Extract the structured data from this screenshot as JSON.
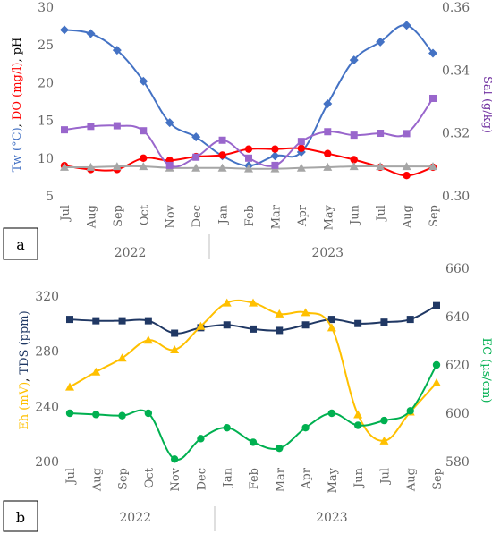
{
  "chart_data": [
    {
      "type": "line",
      "panel_label": "a",
      "categories": [
        "Jul",
        "Aug",
        "Sep",
        "Oct",
        "Nov",
        "Dec",
        "Jan",
        "Feb",
        "Mar",
        "Apr",
        "May",
        "Jun",
        "Jul",
        "Aug",
        "Sep"
      ],
      "years": [
        {
          "label": "2022",
          "from": 0,
          "to": 5
        },
        {
          "label": "2023",
          "from": 6,
          "to": 14
        }
      ],
      "left_axis": {
        "ylim": [
          5,
          30
        ],
        "ticks": [
          5,
          10,
          15,
          20,
          25,
          30
        ],
        "title_parts": [
          {
            "text": "Tw (°C)",
            "color": "#4472c4"
          },
          {
            "text": ", ",
            "color": "#000000"
          },
          {
            "text": "DO (mg/l)",
            "color": "#ff0000"
          },
          {
            "text": ", pH",
            "color": "#000000"
          }
        ]
      },
      "right_axis": {
        "ylim": [
          0.3,
          0.36
        ],
        "ticks": [
          "0.30",
          "0.32",
          "0.34",
          "0.36"
        ],
        "title_parts": [
          {
            "text": "Sal (g/kg)",
            "color": "#7030a0"
          }
        ]
      },
      "series": [
        {
          "key": "tw",
          "axis": "left",
          "marker": "diamond",
          "color": "#4472c4",
          "values": [
            27.0,
            26.5,
            24.3,
            20.2,
            14.7,
            12.8,
            10.3,
            9.0,
            10.3,
            10.8,
            17.2,
            23.0,
            25.4,
            27.6,
            23.9
          ]
        },
        {
          "key": "do",
          "axis": "left",
          "marker": "circle",
          "color": "#ff0000",
          "values": [
            9.0,
            8.5,
            8.5,
            10.0,
            9.7,
            10.2,
            10.4,
            11.2,
            11.2,
            11.3,
            10.6,
            9.8,
            8.8,
            7.7,
            8.8
          ]
        },
        {
          "key": "ph",
          "axis": "left",
          "marker": "triangle",
          "color": "#a6a6a6",
          "values": [
            8.8,
            8.8,
            8.9,
            8.9,
            8.7,
            8.7,
            8.7,
            8.6,
            8.6,
            8.7,
            8.8,
            8.9,
            8.9,
            8.9,
            8.9
          ]
        },
        {
          "key": "sal",
          "axis": "right",
          "marker": "square",
          "color": "#9966cc",
          "values": [
            0.321,
            0.3221,
            0.3223,
            0.3207,
            0.3097,
            0.3123,
            0.3177,
            0.312,
            0.3097,
            0.3173,
            0.3204,
            0.3193,
            0.3199,
            0.3198,
            0.331
          ]
        }
      ]
    },
    {
      "type": "line",
      "panel_label": "b",
      "categories": [
        "Jul",
        "Aug",
        "Sep",
        "Oct",
        "Nov",
        "Dec",
        "Jan",
        "Feb",
        "Mar",
        "Apr",
        "May",
        "Jun",
        "Jul",
        "Aug",
        "Sep"
      ],
      "years": [
        {
          "label": "2022",
          "from": 0,
          "to": 5
        },
        {
          "label": "2023",
          "from": 6,
          "to": 14
        }
      ],
      "left_axis": {
        "ylim": [
          200,
          340
        ],
        "ticks": [
          200,
          240,
          280,
          320
        ],
        "title_parts": [
          {
            "text": "Eh (mV)",
            "color": "#ffc000"
          },
          {
            "text": ", ",
            "color": "#000000"
          },
          {
            "text": "TDS (ppm)",
            "color": "#1f3864"
          }
        ]
      },
      "right_axis": {
        "ylim": [
          580,
          660
        ],
        "ticks": [
          580,
          600,
          620,
          640,
          660
        ],
        "title_parts": [
          {
            "text": "EC (µs/cm)",
            "color": "#00b050"
          }
        ]
      },
      "series": [
        {
          "key": "tds",
          "axis": "left",
          "marker": "square",
          "color": "#203864",
          "values": [
            303,
            302,
            302,
            302,
            293,
            297,
            299,
            296,
            295,
            299,
            303,
            300,
            301,
            303,
            313
          ]
        },
        {
          "key": "eh",
          "axis": "left",
          "marker": "triangle",
          "color": "#ffc000",
          "values": [
            254,
            265,
            275,
            288,
            281,
            298,
            315,
            315,
            307,
            308,
            297,
            234,
            215,
            236,
            257
          ]
        },
        {
          "key": "ec",
          "axis": "right",
          "marker": "circle",
          "color": "#00b050",
          "values": [
            600,
            599.5,
            599,
            600,
            581,
            589.5,
            594,
            588,
            585.5,
            594,
            600,
            595,
            597,
            601,
            620
          ]
        }
      ]
    }
  ]
}
